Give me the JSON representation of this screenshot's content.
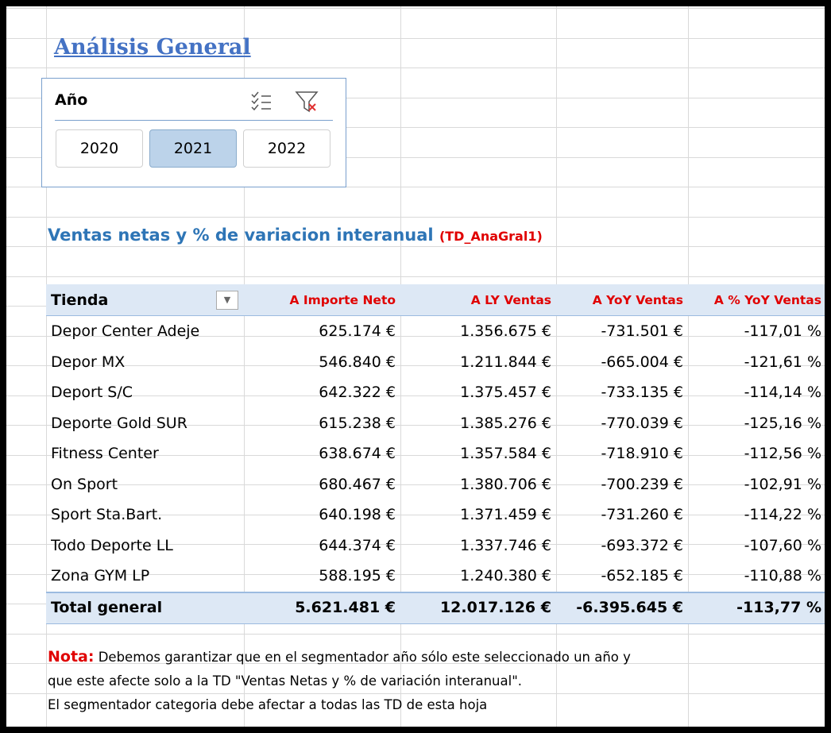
{
  "title": "Análisis General",
  "slicer": {
    "title": "Año",
    "items": [
      "2020",
      "2021",
      "2022"
    ],
    "selected_index": 1
  },
  "section_title": "Ventas netas y % de variacion interanual",
  "section_tag": "(TD_AnaGral1)",
  "table": {
    "headers": [
      "Tienda",
      "A Importe Neto",
      "A LY Ventas",
      "A YoY Ventas",
      "A % YoY Ventas"
    ],
    "rows": [
      [
        "Depor Center Adeje",
        "625.174 €",
        "1.356.675 €",
        "-731.501 €",
        "-117,01 %"
      ],
      [
        "Depor MX",
        "546.840 €",
        "1.211.844 €",
        "-665.004 €",
        "-121,61 %"
      ],
      [
        "Deport S/C",
        "642.322 €",
        "1.375.457 €",
        "-733.135 €",
        "-114,14 %"
      ],
      [
        "Deporte Gold SUR",
        "615.238 €",
        "1.385.276 €",
        "-770.039 €",
        "-125,16 %"
      ],
      [
        "Fitness Center",
        "638.674 €",
        "1.357.584 €",
        "-718.910 €",
        "-112,56 %"
      ],
      [
        "On Sport",
        "680.467 €",
        "1.380.706 €",
        "-700.239 €",
        "-102,91 %"
      ],
      [
        "Sport Sta.Bart.",
        "640.198 €",
        "1.371.459 €",
        "-731.260 €",
        "-114,22 %"
      ],
      [
        "Todo Deporte LL",
        "644.374 €",
        "1.337.746 €",
        "-693.372 €",
        "-107,60 %"
      ],
      [
        "Zona GYM LP",
        "588.195 €",
        "1.240.380 €",
        "-652.185 €",
        "-110,88 %"
      ]
    ],
    "total": [
      "Total general",
      "5.621.481 €",
      "12.017.126 €",
      "-6.395.645 €",
      "-113,77 %"
    ]
  },
  "note": {
    "label": "Nota:",
    "lines": [
      " Debemos garantizar que en el segmentador año sólo este seleccionado un año y",
      "que este afecte solo a la TD \"Ventas Netas y % de variación interanual\".",
      "El segmentador categoria debe afectar a todas las TD de esta hoja"
    ]
  }
}
